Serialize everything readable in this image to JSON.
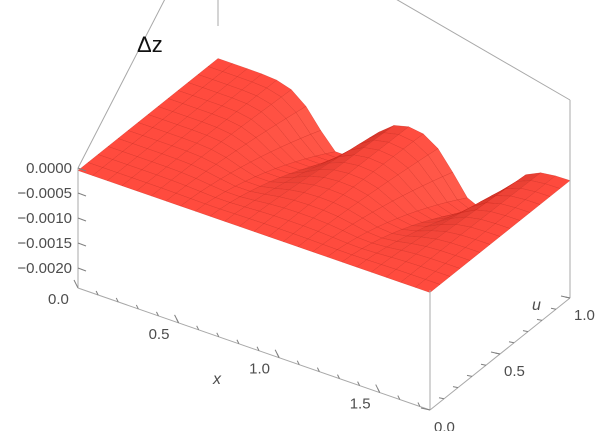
{
  "chart_data": {
    "type": "surface3d",
    "title": "Δz",
    "xlabel": "x",
    "ylabel": "u",
    "zlabel": "",
    "xlim": [
      0,
      1.75
    ],
    "ylim": [
      0,
      1
    ],
    "zlim": [
      -0.0024,
      0
    ],
    "x_ticks": [
      {
        "value": 0.0,
        "label": "0.0"
      },
      {
        "value": 0.5,
        "label": "0.5"
      },
      {
        "value": 1.0,
        "label": "1.0"
      },
      {
        "value": 1.5,
        "label": "1.5"
      }
    ],
    "y_ticks": [
      {
        "value": 0.0,
        "label": "0.0"
      },
      {
        "value": 0.5,
        "label": "0.5"
      },
      {
        "value": 1.0,
        "label": "1.0"
      }
    ],
    "z_ticks": [
      {
        "value": 0.0,
        "label": "0.0000"
      },
      {
        "value": -0.0005,
        "label": "-0.0005"
      },
      {
        "value": -0.001,
        "label": "-0.0010"
      },
      {
        "value": -0.0015,
        "label": "-0.0015"
      },
      {
        "value": -0.002,
        "label": "-0.0020"
      }
    ],
    "mesh": {
      "nx": 24,
      "ny": 14
    },
    "surface_profile": {
      "description_free_params": true,
      "baseline_z": -5e-05,
      "dips": [
        {
          "x": 0.62,
          "width": 0.17,
          "depth": 0.0011
        },
        {
          "x": 1.3,
          "width": 0.17,
          "depth": 0.0012
        }
      ],
      "dip_growth_with_u": 1.6
    },
    "surface_color": "#ff4b3e",
    "edge_color": "#c9261b",
    "box_color": "#a8a8a8",
    "tick_color": "#4d4d4d"
  }
}
